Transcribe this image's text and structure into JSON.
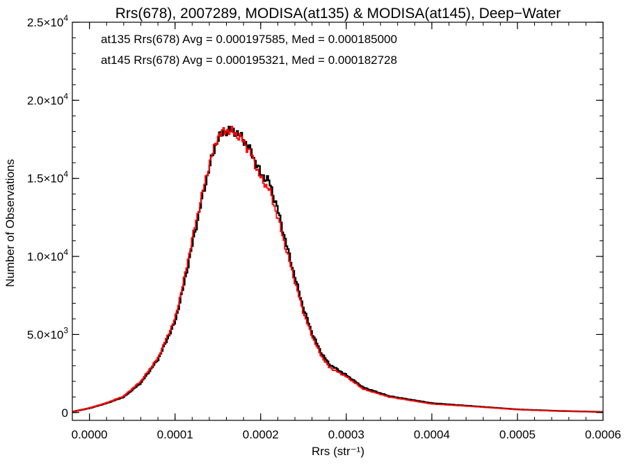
{
  "chart_data": {
    "type": "line",
    "title": "Rrs(678), 2007289, MODISA(at135) & MODISA(at145), Deep−Water",
    "xlabel": "Rrs (str⁻¹)",
    "ylabel": "Number of Observations",
    "xlim": [
      -2e-05,
      0.0006
    ],
    "ylim": [
      -500,
      25000
    ],
    "grid": false,
    "legend_position": "top-left",
    "x_ticks": [
      {
        "value": 0.0,
        "label": "0.0000"
      },
      {
        "value": 0.0001,
        "label": "0.0001"
      },
      {
        "value": 0.0002,
        "label": "0.0002"
      },
      {
        "value": 0.0003,
        "label": "0.0003"
      },
      {
        "value": 0.0004,
        "label": "0.0004"
      },
      {
        "value": 0.0005,
        "label": "0.0005"
      },
      {
        "value": 0.0006,
        "label": "0.0006"
      }
    ],
    "y_ticks": [
      {
        "value": 0,
        "mantissa": "0",
        "exponent": ""
      },
      {
        "value": 5000,
        "mantissa": "5.0",
        "exponent": "3"
      },
      {
        "value": 10000,
        "mantissa": "1.0",
        "exponent": "4"
      },
      {
        "value": 15000,
        "mantissa": "1.5",
        "exponent": "4"
      },
      {
        "value": 20000,
        "mantissa": "2.0",
        "exponent": "4"
      },
      {
        "value": 25000,
        "mantissa": "2.5",
        "exponent": "4"
      }
    ],
    "x": [
      -2e-05,
      0.0,
      2e-05,
      4e-05,
      6e-05,
      8e-05,
      0.0001,
      0.00011,
      0.00012,
      0.00013,
      0.00014,
      0.00015,
      0.00016,
      0.00017,
      0.00018,
      0.00019,
      0.0002,
      0.00021,
      0.00022,
      0.00023,
      0.00024,
      0.00025,
      0.00026,
      0.00027,
      0.00028,
      0.0003,
      0.00032,
      0.00035,
      0.0004,
      0.00045,
      0.0005,
      0.00055,
      0.0006
    ],
    "series": [
      {
        "name": "at135",
        "color": "#000000",
        "legend": "at135 Rrs(678) Avg = 0.000197585, Med = 0.000185000",
        "values": [
          50,
          280,
          600,
          1000,
          1900,
          3400,
          5800,
          8100,
          10700,
          13300,
          15700,
          17600,
          18100,
          18000,
          17500,
          16600,
          15300,
          14800,
          13000,
          10800,
          8700,
          6700,
          5100,
          3900,
          3100,
          2400,
          1600,
          1050,
          600,
          400,
          200,
          100,
          40
        ]
      },
      {
        "name": "at145",
        "color": "#ff0000",
        "legend": "at145 Rrs(678) Avg = 0.000195321, Med = 0.000182728",
        "values": [
          50,
          290,
          620,
          1050,
          2000,
          3500,
          6000,
          8400,
          11100,
          13600,
          15900,
          17700,
          18100,
          17900,
          17400,
          16400,
          15000,
          14300,
          12500,
          10400,
          8400,
          6400,
          4900,
          3700,
          2900,
          2300,
          1500,
          1000,
          550,
          380,
          190,
          90,
          30
        ]
      }
    ]
  }
}
